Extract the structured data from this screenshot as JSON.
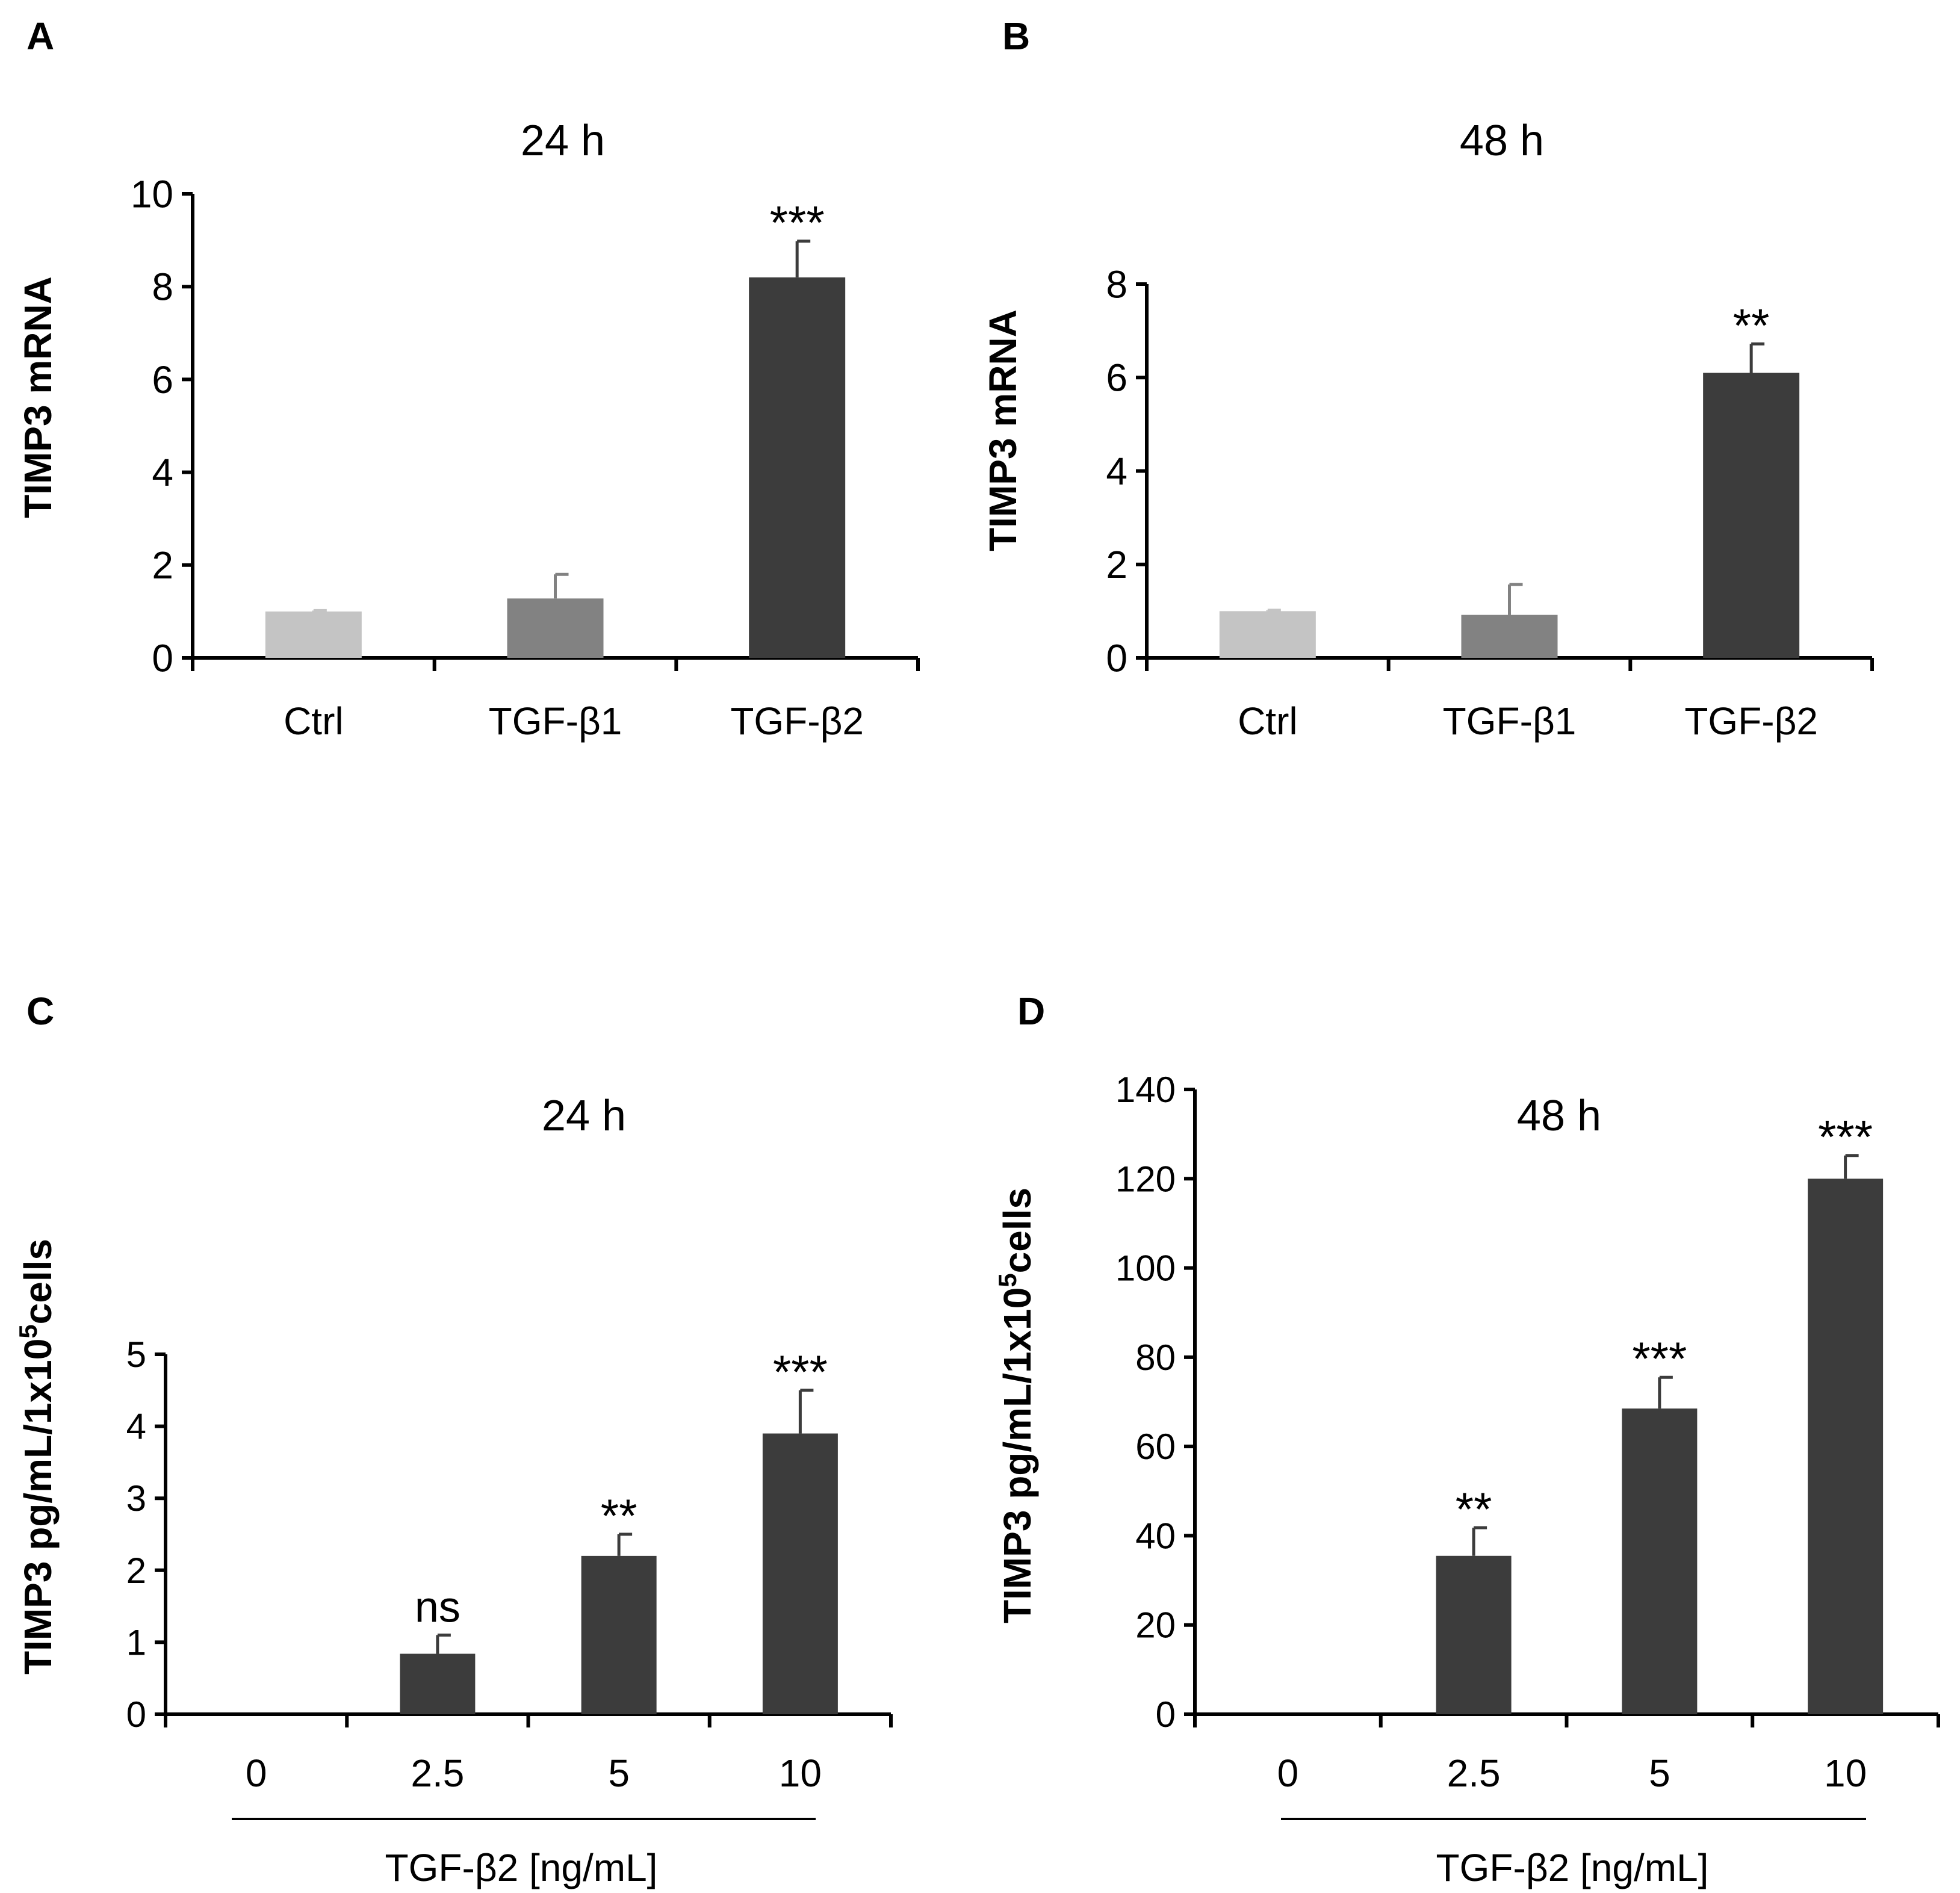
{
  "colors": {
    "ctrl": "#c4c4c4",
    "tgf_b1": "#828282",
    "dark": "#3c3c3c",
    "axis": "#000000"
  },
  "chart_data": [
    {
      "panel_letter": "A",
      "type": "bar",
      "title": "24 h",
      "ylabel": "TIMP3 mRNA",
      "xlabel": "",
      "categories": [
        "Ctrl",
        "TGF-β1",
        "TGF-β2"
      ],
      "values": [
        1.0,
        1.28,
        8.2
      ],
      "errors": [
        0.02,
        0.52,
        0.78
      ],
      "significance": [
        "",
        "",
        "***"
      ],
      "bar_colors": [
        "#c4c4c4",
        "#828282",
        "#3c3c3c"
      ],
      "ylim": [
        0,
        10
      ],
      "yticks": [
        0,
        2,
        4,
        6,
        8,
        10
      ],
      "grid": false,
      "legend": "none"
    },
    {
      "panel_letter": "B",
      "type": "bar",
      "title": "48 h",
      "ylabel": "TIMP3 mRNA",
      "xlabel": "",
      "categories": [
        "Ctrl",
        "TGF-β1",
        "TGF-β2"
      ],
      "values": [
        1.0,
        0.92,
        6.1
      ],
      "errors": [
        0.02,
        0.65,
        0.62
      ],
      "significance": [
        "",
        "",
        "**"
      ],
      "bar_colors": [
        "#c4c4c4",
        "#828282",
        "#3c3c3c"
      ],
      "ylim": [
        0,
        8
      ],
      "yticks": [
        0,
        2,
        4,
        6,
        8
      ],
      "grid": false,
      "legend": "none"
    },
    {
      "panel_letter": "C",
      "type": "bar",
      "title": "24 h",
      "ylabel_main": "TIMP3 pg/mL/1x10",
      "ylabel_sup": "5",
      "ylabel_tail": "cells",
      "xlabel": "TGF-β2 [ng/mL]",
      "categories": [
        "0",
        "2.5",
        "5",
        "10"
      ],
      "values": [
        0,
        0.84,
        2.2,
        3.9
      ],
      "errors": [
        0,
        0.26,
        0.3,
        0.6
      ],
      "significance": [
        "",
        "ns",
        "**",
        "***"
      ],
      "bar_colors": [
        "#3c3c3c",
        "#3c3c3c",
        "#3c3c3c",
        "#3c3c3c"
      ],
      "ylim": [
        0,
        5
      ],
      "yticks": [
        0,
        1,
        2,
        3,
        4,
        5
      ],
      "grid": false,
      "legend": "none"
    },
    {
      "panel_letter": "D",
      "type": "bar",
      "title": "48 h",
      "ylabel_main": "TIMP3 pg/mL/1x10",
      "ylabel_sup": "5",
      "ylabel_tail": "cells",
      "xlabel": "TGF-β2 [ng/mL]",
      "categories": [
        "0",
        "2.5",
        "5",
        "10"
      ],
      "values": [
        0,
        35.5,
        68.5,
        120
      ],
      "errors": [
        0,
        6.3,
        7.0,
        5.2
      ],
      "significance": [
        "",
        "**",
        "***",
        "***"
      ],
      "bar_colors": [
        "#3c3c3c",
        "#3c3c3c",
        "#3c3c3c",
        "#3c3c3c"
      ],
      "ylim": [
        0,
        140
      ],
      "yticks": [
        0,
        20,
        40,
        60,
        80,
        100,
        120,
        140
      ],
      "grid": false,
      "legend": "none"
    }
  ]
}
